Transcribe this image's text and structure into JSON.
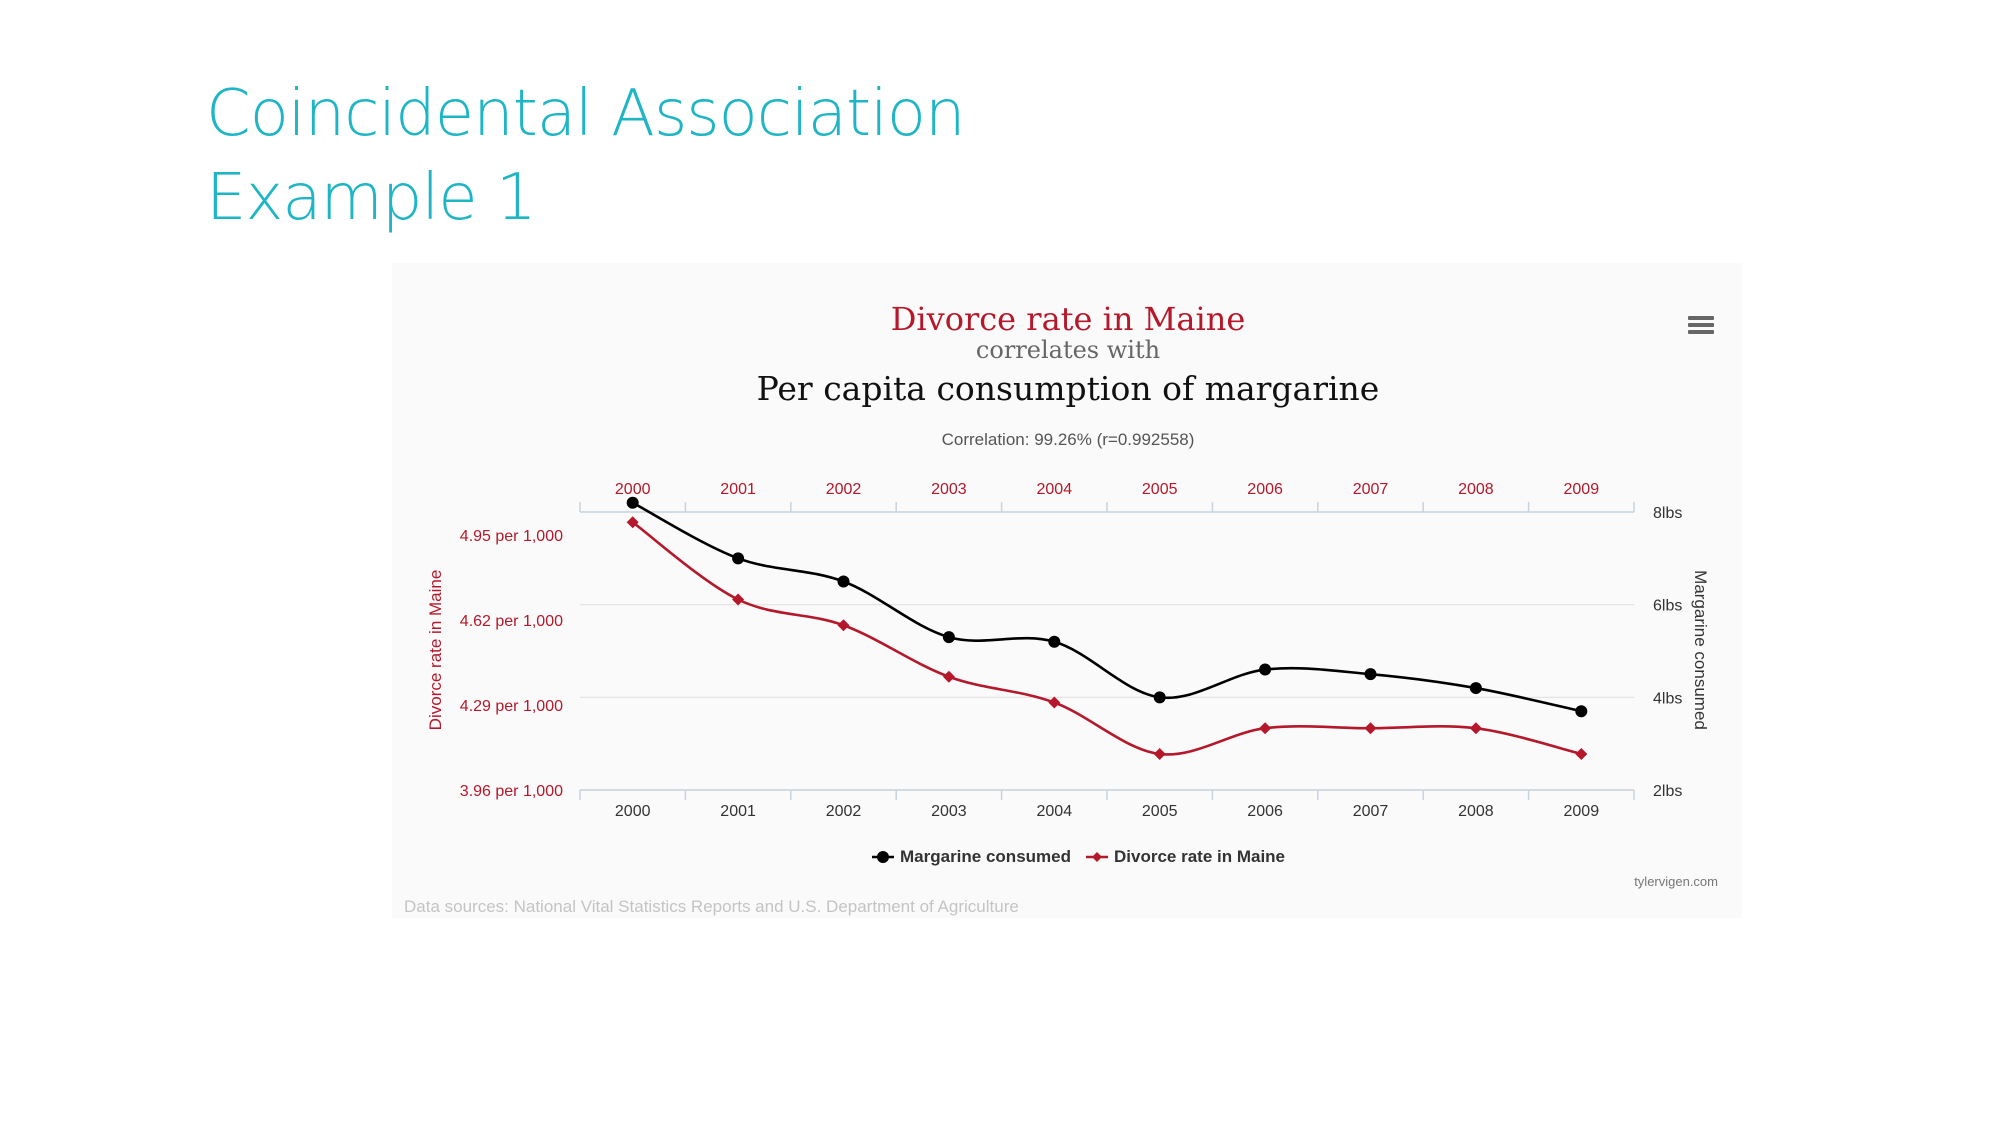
{
  "slide": {
    "title_line1": "Coincidental Association",
    "title_line2": "Example 1"
  },
  "chart_data": {
    "type": "line",
    "title": "Divorce rate in Maine",
    "subtitle_connector": "correlates with",
    "subtitle": "Per capita consumption of margarine",
    "correlation": "Correlation: 99.26% (r=0.992558)",
    "x": [
      "2000",
      "2001",
      "2002",
      "2003",
      "2004",
      "2005",
      "2006",
      "2007",
      "2008",
      "2009"
    ],
    "y_left": {
      "label": "Divorce rate in Maine",
      "ticks": [
        "4.95 per 1,000",
        "4.62 per 1,000",
        "4.29 per 1,000",
        "3.96 per 1,000"
      ],
      "tick_values": [
        4.95,
        4.62,
        4.29,
        3.96
      ],
      "range": [
        3.96,
        5.04
      ]
    },
    "y_right": {
      "label": "Margarine consumed",
      "ticks": [
        "8lbs",
        "6lbs",
        "4lbs",
        "2lbs"
      ],
      "tick_values": [
        8,
        6,
        4,
        2
      ],
      "range": [
        2,
        8
      ]
    },
    "series": [
      {
        "name": "Margarine consumed",
        "axis": "right",
        "color": "#000000",
        "marker": "circle",
        "values": [
          8.2,
          7.0,
          6.5,
          5.3,
          5.2,
          4.0,
          4.6,
          4.5,
          4.2,
          3.7
        ]
      },
      {
        "name": "Divorce rate in Maine",
        "axis": "left",
        "color": "#b5182a",
        "marker": "diamond",
        "values": [
          5.0,
          4.7,
          4.6,
          4.4,
          4.3,
          4.1,
          4.2,
          4.2,
          4.2,
          4.1
        ]
      }
    ],
    "legend": "bottom-center",
    "credit": "tylervigen.com",
    "sources": "Data sources: National Vital Statistics Reports and U.S. Department of Agriculture",
    "grid": true
  },
  "colors": {
    "accent": "#1eb5c4",
    "divorce": "#b5182a",
    "margarine": "#000000"
  },
  "icons": {
    "menu": "hamburger-menu-icon"
  }
}
